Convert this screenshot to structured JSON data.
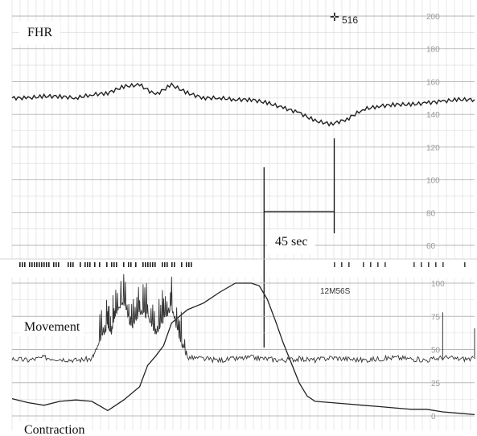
{
  "labels": {
    "fhr": "FHR",
    "movement": "Movement",
    "contraction": "Contraction",
    "interval": "45 sec",
    "marker": "516",
    "marker_icon": "crosshair-icon",
    "stamp": "12M56S"
  },
  "chart_data": [
    {
      "type": "line",
      "title": "",
      "xlabel": "",
      "ylabel": "",
      "panel": "fhr",
      "ylim": [
        60,
        200
      ],
      "y_ticks": [
        60,
        80,
        100,
        120,
        140,
        160,
        180,
        200
      ],
      "y_tick_labels": [
        "60",
        "80",
        "100",
        "120",
        "140",
        "160",
        "180",
        "200"
      ],
      "x_unit": "sec",
      "x": [
        0,
        10,
        20,
        30,
        40,
        50,
        60,
        70,
        80,
        90,
        100,
        110,
        120,
        130,
        140,
        150,
        160,
        170,
        180,
        190,
        200,
        210,
        220,
        230,
        240,
        250,
        260,
        270,
        280,
        290
      ],
      "series": [
        {
          "values": [
            150,
            150,
            151,
            151,
            150,
            152,
            153,
            157,
            158,
            152,
            158,
            153,
            150,
            150,
            149,
            149,
            147,
            144,
            141,
            136,
            134,
            137,
            143,
            145,
            146,
            146,
            147,
            148,
            149,
            149
          ]
        }
      ],
      "annotations": [
        {
          "text": "45 sec",
          "from_x": 158,
          "to_x": 202
        }
      ]
    },
    {
      "type": "line",
      "title": "",
      "xlabel": "",
      "ylabel": "",
      "panel": "toco",
      "ylim": [
        0,
        100
      ],
      "y_ticks": [
        0,
        25,
        50,
        75,
        100
      ],
      "y_tick_labels": [
        "0",
        "25",
        "50",
        "75",
        "100"
      ],
      "x_unit": "sec",
      "series": [
        {
          "name": "Contraction",
          "x": [
            0,
            10,
            20,
            30,
            40,
            50,
            60,
            70,
            80,
            85,
            90,
            95,
            100,
            110,
            120,
            130,
            140,
            150,
            155,
            160,
            165,
            170,
            175,
            180,
            185,
            190,
            200,
            210,
            220,
            230,
            240,
            250,
            260,
            270,
            280,
            290
          ],
          "values": [
            13,
            10,
            8,
            11,
            12,
            11,
            4,
            12,
            22,
            38,
            45,
            53,
            70,
            80,
            85,
            93,
            100,
            100,
            98,
            88,
            72,
            55,
            40,
            25,
            15,
            11,
            10,
            9,
            8,
            7,
            6,
            5,
            5,
            3,
            2,
            1
          ]
        },
        {
          "name": "Movement",
          "x": [
            0,
            10,
            20,
            30,
            40,
            50,
            55,
            60,
            62,
            65,
            70,
            75,
            80,
            85,
            90,
            95,
            100,
            105,
            110,
            120,
            130,
            140,
            150,
            160,
            170,
            180,
            190,
            200,
            210,
            220,
            230,
            240,
            250,
            260,
            270,
            280,
            290
          ],
          "values": [
            43,
            42,
            44,
            43,
            42,
            43,
            55,
            69,
            62,
            78,
            85,
            66,
            78,
            75,
            62,
            72,
            82,
            58,
            44,
            43,
            42,
            43,
            44,
            43,
            42,
            43,
            42,
            44,
            43,
            42,
            43,
            44,
            43,
            42,
            44,
            43,
            43
          ]
        }
      ],
      "annotations": [
        {
          "text": "12M56S",
          "x": 190,
          "y": 93
        }
      ]
    }
  ]
}
